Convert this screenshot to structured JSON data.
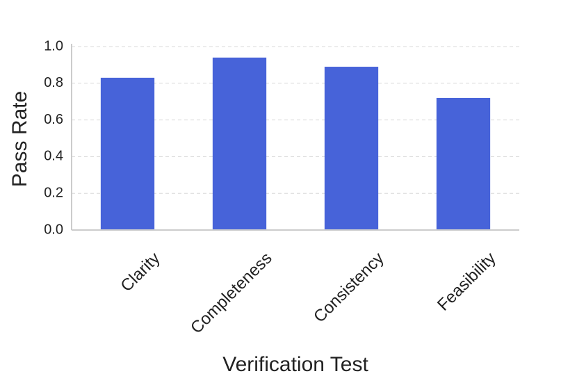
{
  "chart_data": {
    "type": "bar",
    "xlabel": "Verification Test",
    "ylabel": "Pass Rate",
    "categories": [
      "Clarity",
      "Completeness",
      "Consistency",
      "Feasibility"
    ],
    "values": [
      0.83,
      0.94,
      0.89,
      0.72
    ],
    "color": "#4763d9",
    "ylim": [
      0,
      1.0
    ],
    "yticks": [
      {
        "value": 0,
        "label": "0.0"
      },
      0.2,
      0.4,
      0.6,
      0.8,
      {
        "value": 1.0,
        "label": "1.0"
      }
    ],
    "grid": true
  }
}
